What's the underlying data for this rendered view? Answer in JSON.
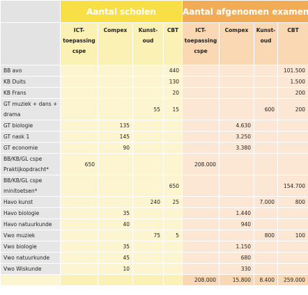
{
  "groups": [
    "Aantal scholen",
    "Aantal afgenomen examens"
  ],
  "columns": [
    "ICT-toepassing cspe",
    "Compex",
    "Kunst-oud",
    "CBT",
    "ICT-toepassing cspe",
    "Compex",
    "Kunst-oud",
    "CBT"
  ],
  "rows": [
    {
      "label": "BB avo",
      "cells": [
        "",
        "",
        "",
        "440",
        "",
        "",
        "",
        "101.500"
      ]
    },
    {
      "label": "KB Duits",
      "cells": [
        "",
        "",
        "",
        "130",
        "",
        "",
        "",
        "1.500"
      ]
    },
    {
      "label": "KB Frans",
      "cells": [
        "",
        "",
        "",
        "20",
        "",
        "",
        "",
        "200"
      ]
    },
    {
      "label": "GT muziek + dans + drama",
      "cells": [
        "",
        "",
        "55",
        "15",
        "",
        "",
        "600",
        "200"
      ]
    },
    {
      "label": "GT biologie",
      "cells": [
        "",
        "135",
        "",
        "",
        "",
        "4.630",
        "",
        ""
      ]
    },
    {
      "label": "GT nask 1",
      "cells": [
        "",
        "145",
        "",
        "",
        "",
        "3.250",
        "",
        ""
      ]
    },
    {
      "label": "GT economie",
      "cells": [
        "",
        "90",
        "",
        "",
        "",
        "3.380",
        "",
        ""
      ]
    },
    {
      "label": "BB/KB/GL cspe Praktijkopdracht*",
      "cells": [
        "650",
        "",
        "",
        "",
        "208.000",
        "",
        "",
        ""
      ]
    },
    {
      "label": "BB/KB/GL cspe minitoetsen*",
      "cells": [
        "",
        "",
        "",
        "650",
        "",
        "",
        "",
        "154.700"
      ]
    },
    {
      "label": "Havo kunst",
      "cells": [
        "",
        "",
        "240",
        "25",
        "",
        "",
        "7.000",
        "800"
      ]
    },
    {
      "label": "Havo biologie",
      "cells": [
        "",
        "35",
        "",
        "",
        "",
        "1.440",
        "",
        ""
      ]
    },
    {
      "label": "Havo natuurkunde",
      "cells": [
        "",
        "40",
        "",
        "",
        "",
        "940",
        "",
        ""
      ]
    },
    {
      "label": "Vwo muziek",
      "cells": [
        "",
        "",
        "75",
        "5",
        "",
        "",
        "800",
        "100"
      ]
    },
    {
      "label": "Vwo biologie",
      "cells": [
        "",
        "35",
        "",
        "",
        "",
        "1.150",
        "",
        ""
      ]
    },
    {
      "label": "Vwo natuurkunde",
      "cells": [
        "",
        "45",
        "",
        "",
        "",
        "680",
        "",
        ""
      ]
    },
    {
      "label": "Vwo Wiskunde",
      "cells": [
        "",
        "10",
        "",
        "",
        "",
        "330",
        "",
        ""
      ]
    }
  ],
  "totals": [
    "",
    "",
    "",
    "",
    "208.000",
    "15.800",
    "8.400",
    "259.000"
  ],
  "colors": {
    "scholen_header": "#f8df45",
    "examens_header": "#f1ac55"
  }
}
